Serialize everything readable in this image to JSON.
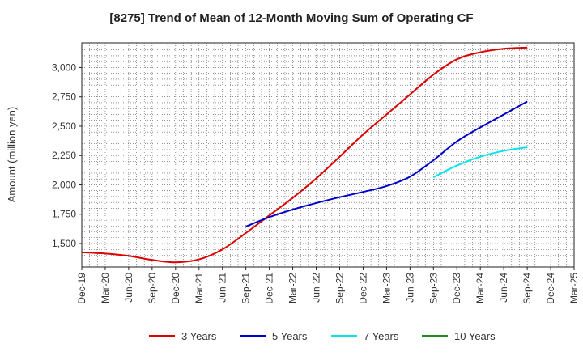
{
  "chart_data": {
    "type": "line",
    "title": "[8275]  Trend of Mean of 12-Month Moving Sum of Operating CF",
    "xlabel": "",
    "ylabel": "Amount (million yen)",
    "ylim": [
      1300,
      3210
    ],
    "yticks": [
      1500,
      1750,
      2000,
      2250,
      2500,
      2750,
      3000
    ],
    "ytick_labels": [
      "1,500",
      "1,750",
      "2,000",
      "2,250",
      "2,500",
      "2,750",
      "3,000"
    ],
    "categories": [
      "Dec-19",
      "Mar-20",
      "Jun-20",
      "Sep-20",
      "Dec-20",
      "Mar-21",
      "Jun-21",
      "Sep-21",
      "Dec-21",
      "Mar-22",
      "Jun-22",
      "Sep-22",
      "Dec-22",
      "Mar-23",
      "Jun-23",
      "Sep-23",
      "Dec-23",
      "Mar-24",
      "Jun-24",
      "Sep-24",
      "Dec-24",
      "Mar-25"
    ],
    "grid": true,
    "legend_position": "bottom",
    "series": [
      {
        "name": "3 Years",
        "color": "#dd0000",
        "values": [
          1425,
          1415,
          1395,
          1360,
          1340,
          1365,
          1450,
          1590,
          1740,
          1890,
          2055,
          2240,
          2430,
          2600,
          2770,
          2940,
          3070,
          3130,
          3160,
          3170,
          null,
          null
        ]
      },
      {
        "name": "5 Years",
        "color": "#0000cc",
        "values": [
          null,
          null,
          null,
          null,
          null,
          null,
          null,
          1645,
          1725,
          1790,
          1845,
          1895,
          1940,
          1990,
          2070,
          2210,
          2370,
          2490,
          2600,
          2710,
          null,
          null
        ]
      },
      {
        "name": "7 Years",
        "color": "#00e5ee",
        "values": [
          null,
          null,
          null,
          null,
          null,
          null,
          null,
          null,
          null,
          null,
          null,
          null,
          null,
          null,
          null,
          2065,
          2165,
          2240,
          2290,
          2320,
          null,
          null
        ]
      },
      {
        "name": "10 Years",
        "color": "#228b22",
        "values": [
          null,
          null,
          null,
          null,
          null,
          null,
          null,
          null,
          null,
          null,
          null,
          null,
          null,
          null,
          null,
          null,
          null,
          null,
          null,
          null,
          null,
          null
        ]
      }
    ]
  }
}
